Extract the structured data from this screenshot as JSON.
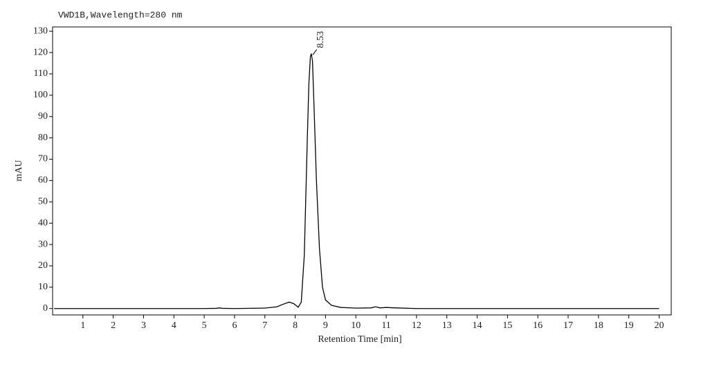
{
  "chart_data": {
    "type": "line",
    "title": "VWD1B,Wavelength=280 nm",
    "xlabel": "Retention Time [min]",
    "ylabel": "mAU",
    "x": [
      0.05,
      1,
      2,
      3,
      4,
      5,
      5.4,
      5.5,
      5.6,
      6,
      7,
      7.4,
      7.6,
      7.8,
      7.95,
      8.1,
      8.2,
      8.3,
      8.4,
      8.45,
      8.5,
      8.53,
      8.57,
      8.62,
      8.7,
      8.8,
      8.9,
      9.0,
      9.2,
      9.5,
      10,
      10.5,
      10.65,
      10.8,
      11,
      11.3,
      12,
      14,
      16,
      18,
      20
    ],
    "series": [
      {
        "name": "VWD1B",
        "color": "#000000",
        "values": [
          0,
          0,
          0,
          0,
          0,
          0,
          0.1,
          0.3,
          0.1,
          0,
          0.2,
          0.8,
          2,
          3,
          2.3,
          0.6,
          3,
          25,
          80,
          105,
          118,
          119.5,
          116,
          95,
          60,
          28,
          10,
          4,
          1.5,
          0.5,
          0.2,
          0.3,
          0.8,
          0.3,
          0.5,
          0.3,
          0,
          0,
          0,
          0,
          0
        ]
      }
    ],
    "peak": {
      "label": "8.53",
      "x": 8.53,
      "y": 119.5
    },
    "xlim": [
      0,
      20.4
    ],
    "ylim": [
      -3,
      132
    ],
    "xticks": [
      1,
      2,
      3,
      4,
      5,
      6,
      7,
      8,
      9,
      10,
      11,
      12,
      13,
      14,
      15,
      16,
      17,
      18,
      19,
      20
    ],
    "yticks": [
      0,
      10,
      20,
      30,
      40,
      50,
      60,
      70,
      80,
      90,
      100,
      110,
      120,
      130
    ]
  }
}
